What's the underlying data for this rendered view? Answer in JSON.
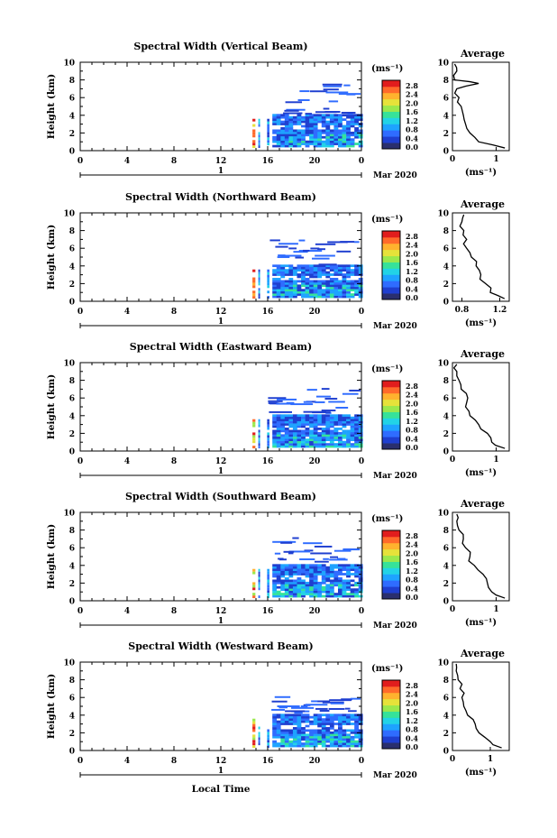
{
  "figure": {
    "x_label": "Local Time",
    "y_label": "Height (km)",
    "x_ticks": [
      "0",
      "4",
      "8",
      "12",
      "16",
      "20",
      "0"
    ],
    "y_ticks": [
      "0",
      "2",
      "4",
      "6",
      "8",
      "10"
    ],
    "day_label": "1",
    "month_label": "Mar 2020",
    "colorbar_unit": "(ms⁻¹)",
    "colorbar_ticks": [
      "2.8",
      "2.4",
      "2.0",
      "1.6",
      "1.2",
      "0.8",
      "0.4",
      "0.0"
    ],
    "colors": [
      "#2a2f6e",
      "#1f3fd0",
      "#2f6cff",
      "#1ea3ff",
      "#22d3e6",
      "#36e29a",
      "#9be84c",
      "#e6e23a",
      "#ffb22e",
      "#ff6a2a",
      "#e11d1d"
    ],
    "profile_title": "Average",
    "profile_unit": "(ms⁻¹)"
  },
  "chart_data": [
    {
      "type": "heatmap",
      "title": "Spectral Width (Vertical Beam)",
      "xlabel": "Local Time",
      "ylabel": "Height (km)",
      "xlim": [
        0,
        24
      ],
      "ylim": [
        0,
        10
      ],
      "clim": [
        0,
        3.0
      ],
      "data_hours": [
        15.0,
        24.0
      ],
      "data_height_km": [
        0.3,
        7.5
      ],
      "profile": {
        "title": "Average",
        "xlabel": "(ms⁻¹)",
        "x_ticks": [
          "0",
          "1"
        ],
        "xlim": [
          0,
          1.3
        ],
        "heights_km": [
          0.3,
          1,
          2,
          3,
          4,
          5,
          6,
          7,
          7.6,
          8,
          9,
          9.8
        ],
        "values": [
          1.2,
          0.6,
          0.4,
          0.3,
          0.25,
          0.2,
          0.15,
          0.1,
          0.6,
          0.05,
          0.1,
          0.05
        ]
      }
    },
    {
      "type": "heatmap",
      "title": "Spectral Width (Northward Beam)",
      "xlabel": "Local Time",
      "ylabel": "Height (km)",
      "xlim": [
        0,
        24
      ],
      "ylim": [
        0,
        10
      ],
      "clim": [
        0,
        3.0
      ],
      "data_hours": [
        15.0,
        24.0
      ],
      "data_height_km": [
        0.3,
        7.2
      ],
      "profile": {
        "title": "Average",
        "xlabel": "(ms⁻¹)",
        "x_ticks": [
          "0.8",
          "1.2"
        ],
        "xlim": [
          0.7,
          1.3
        ],
        "heights_km": [
          0.3,
          1,
          2,
          3,
          4,
          5,
          6,
          7,
          8,
          9,
          9.8
        ],
        "values": [
          1.25,
          1.1,
          1.05,
          1.0,
          0.95,
          0.9,
          0.85,
          0.85,
          0.82,
          0.8,
          0.82
        ]
      }
    },
    {
      "type": "heatmap",
      "title": "Spectral Width (Eastward Beam)",
      "xlabel": "Local Time",
      "ylabel": "Height (km)",
      "xlim": [
        0,
        24
      ],
      "ylim": [
        0,
        10
      ],
      "clim": [
        0,
        3.0
      ],
      "data_hours": [
        15.0,
        24.0
      ],
      "data_height_km": [
        0.3,
        7.0
      ],
      "profile": {
        "title": "Average",
        "xlabel": "(ms⁻¹)",
        "x_ticks": [
          "0",
          "1"
        ],
        "xlim": [
          0,
          1.3
        ],
        "heights_km": [
          0.3,
          1,
          2,
          3,
          4,
          5,
          6,
          7,
          8,
          9,
          9.8
        ],
        "values": [
          1.2,
          0.9,
          0.8,
          0.6,
          0.4,
          0.3,
          0.35,
          0.2,
          0.15,
          0.1,
          0.1
        ]
      }
    },
    {
      "type": "heatmap",
      "title": "Spectral Width (Southward Beam)",
      "xlabel": "Local Time",
      "ylabel": "Height (km)",
      "xlim": [
        0,
        24
      ],
      "ylim": [
        0,
        10
      ],
      "clim": [
        0,
        3.0
      ],
      "data_hours": [
        15.0,
        24.0
      ],
      "data_height_km": [
        0.3,
        7.0
      ],
      "profile": {
        "title": "Average",
        "xlabel": "(ms⁻¹)",
        "x_ticks": [
          "0",
          "1"
        ],
        "xlim": [
          0,
          1.3
        ],
        "heights_km": [
          0.3,
          1,
          2,
          3,
          4,
          5,
          6,
          7,
          8,
          9,
          9.8
        ],
        "values": [
          1.2,
          0.9,
          0.8,
          0.7,
          0.5,
          0.4,
          0.3,
          0.25,
          0.15,
          0.1,
          0.1
        ]
      }
    },
    {
      "type": "heatmap",
      "title": "Spectral Width (Westward Beam)",
      "xlabel": "Local Time",
      "ylabel": "Height (km)",
      "xlim": [
        0,
        24
      ],
      "ylim": [
        0,
        10
      ],
      "clim": [
        0,
        3.0
      ],
      "data_hours": [
        15.0,
        24.0
      ],
      "data_height_km": [
        0.3,
        6.0
      ],
      "profile": {
        "title": "Average",
        "xlabel": "(ms⁻¹)",
        "x_ticks": [
          "0",
          "1"
        ],
        "xlim": [
          0,
          1.5
        ],
        "heights_km": [
          0.3,
          1,
          2,
          3,
          4,
          5,
          6,
          7,
          8,
          9,
          9.8
        ],
        "values": [
          1.3,
          1.0,
          0.7,
          0.6,
          0.4,
          0.3,
          0.25,
          0.2,
          0.15,
          0.1,
          0.1
        ]
      }
    }
  ]
}
